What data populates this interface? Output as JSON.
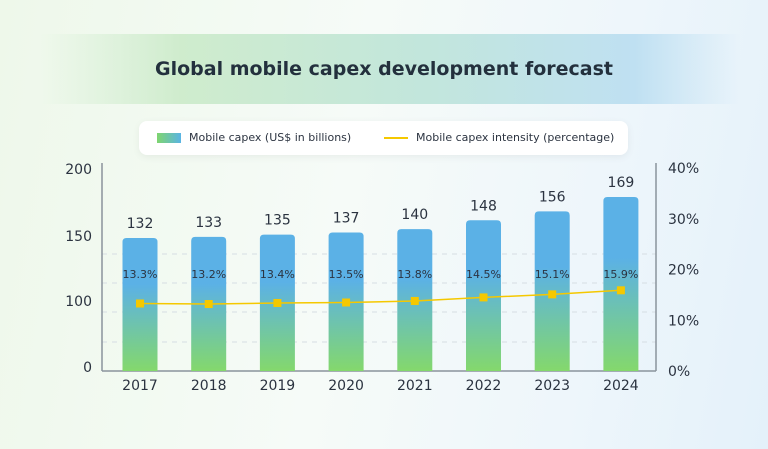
{
  "chart_data": {
    "type": "bar",
    "title": "Global mobile capex development forecast",
    "categories": [
      "2017",
      "2018",
      "2019",
      "2020",
      "2021",
      "2022",
      "2023",
      "2024"
    ],
    "series": [
      {
        "name": "Mobile capex (US$ in billions)",
        "type": "bar",
        "axis": "left",
        "values": [
          132,
          133,
          135,
          137,
          140,
          148,
          156,
          169
        ],
        "color_top": "#5bb1e6",
        "color_bottom": "#84d86c"
      },
      {
        "name": "Mobile capex intensity (percentage)",
        "type": "line",
        "axis": "right",
        "values": [
          13.3,
          13.2,
          13.4,
          13.5,
          13.8,
          14.5,
          15.1,
          15.9
        ],
        "color": "#f5c800"
      }
    ],
    "left_axis": {
      "ticks": [
        "0",
        "100",
        "150",
        "200"
      ]
    },
    "right_axis": {
      "ticks": [
        "0%",
        "10%",
        "20%",
        "30%",
        "40%"
      ],
      "range": [
        0,
        40
      ]
    },
    "grid": "dashed horizontal",
    "legend": "top"
  }
}
